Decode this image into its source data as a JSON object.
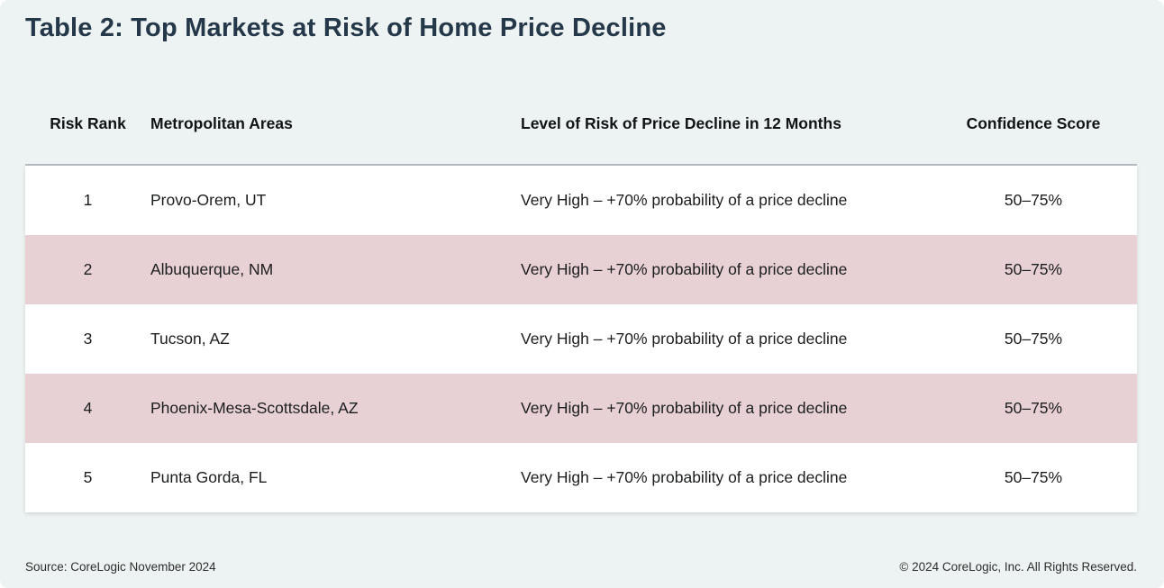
{
  "page": {
    "title": "Table 2: Top Markets at Risk of Home Price Decline",
    "colors": {
      "background": "#edf3f2",
      "row_default": "#ffffff",
      "row_alt": "#e8d1d5",
      "title_text": "#24384a",
      "divider": "#b4bbc1"
    }
  },
  "table": {
    "columns": [
      "Risk Rank",
      "Metropolitan Areas",
      "Level of Risk of Price Decline in 12 Months",
      "Confidence Score"
    ],
    "rows": [
      {
        "rank": "1",
        "metro": "Provo-Orem, UT",
        "risk": "Very High – +70% probability of a price decline",
        "confidence": "50–75%"
      },
      {
        "rank": "2",
        "metro": "Albuquerque, NM",
        "risk": "Very High – +70% probability of a price decline",
        "confidence": "50–75%"
      },
      {
        "rank": "3",
        "metro": "Tucson, AZ",
        "risk": "Very High – +70% probability of a price decline",
        "confidence": "50–75%"
      },
      {
        "rank": "4",
        "metro": "Phoenix-Mesa-Scottsdale, AZ",
        "risk": "Very High – +70% probability of a price decline",
        "confidence": "50–75%"
      },
      {
        "rank": "5",
        "metro": "Punta Gorda, FL",
        "risk": "Very High – +70% probability of a price decline",
        "confidence": "50–75%"
      }
    ]
  },
  "footer": {
    "source": "Source: CoreLogic November 2024",
    "copyright": "© 2024 CoreLogic, Inc. All Rights Reserved."
  },
  "chart_data": {
    "type": "table",
    "title": "Table 2: Top Markets at Risk of Home Price Decline",
    "columns": [
      "Risk Rank",
      "Metropolitan Areas",
      "Level of Risk of Price Decline in 12 Months",
      "Confidence Score"
    ],
    "rows": [
      [
        "1",
        "Provo-Orem, UT",
        "Very High – +70% probability of a price decline",
        "50–75%"
      ],
      [
        "2",
        "Albuquerque, NM",
        "Very High – +70% probability of a price decline",
        "50–75%"
      ],
      [
        "3",
        "Tucson, AZ",
        "Very High – +70% probability of a price decline",
        "50–75%"
      ],
      [
        "4",
        "Phoenix-Mesa-Scottsdale, AZ",
        "Very High – +70% probability of a price decline",
        "50–75%"
      ],
      [
        "5",
        "Punta Gorda, FL",
        "Very High – +70% probability of a price decline",
        "50–75%"
      ]
    ],
    "source": "Source: CoreLogic November 2024",
    "notes": "Rows 2 and 4 highlighted with pink background"
  }
}
